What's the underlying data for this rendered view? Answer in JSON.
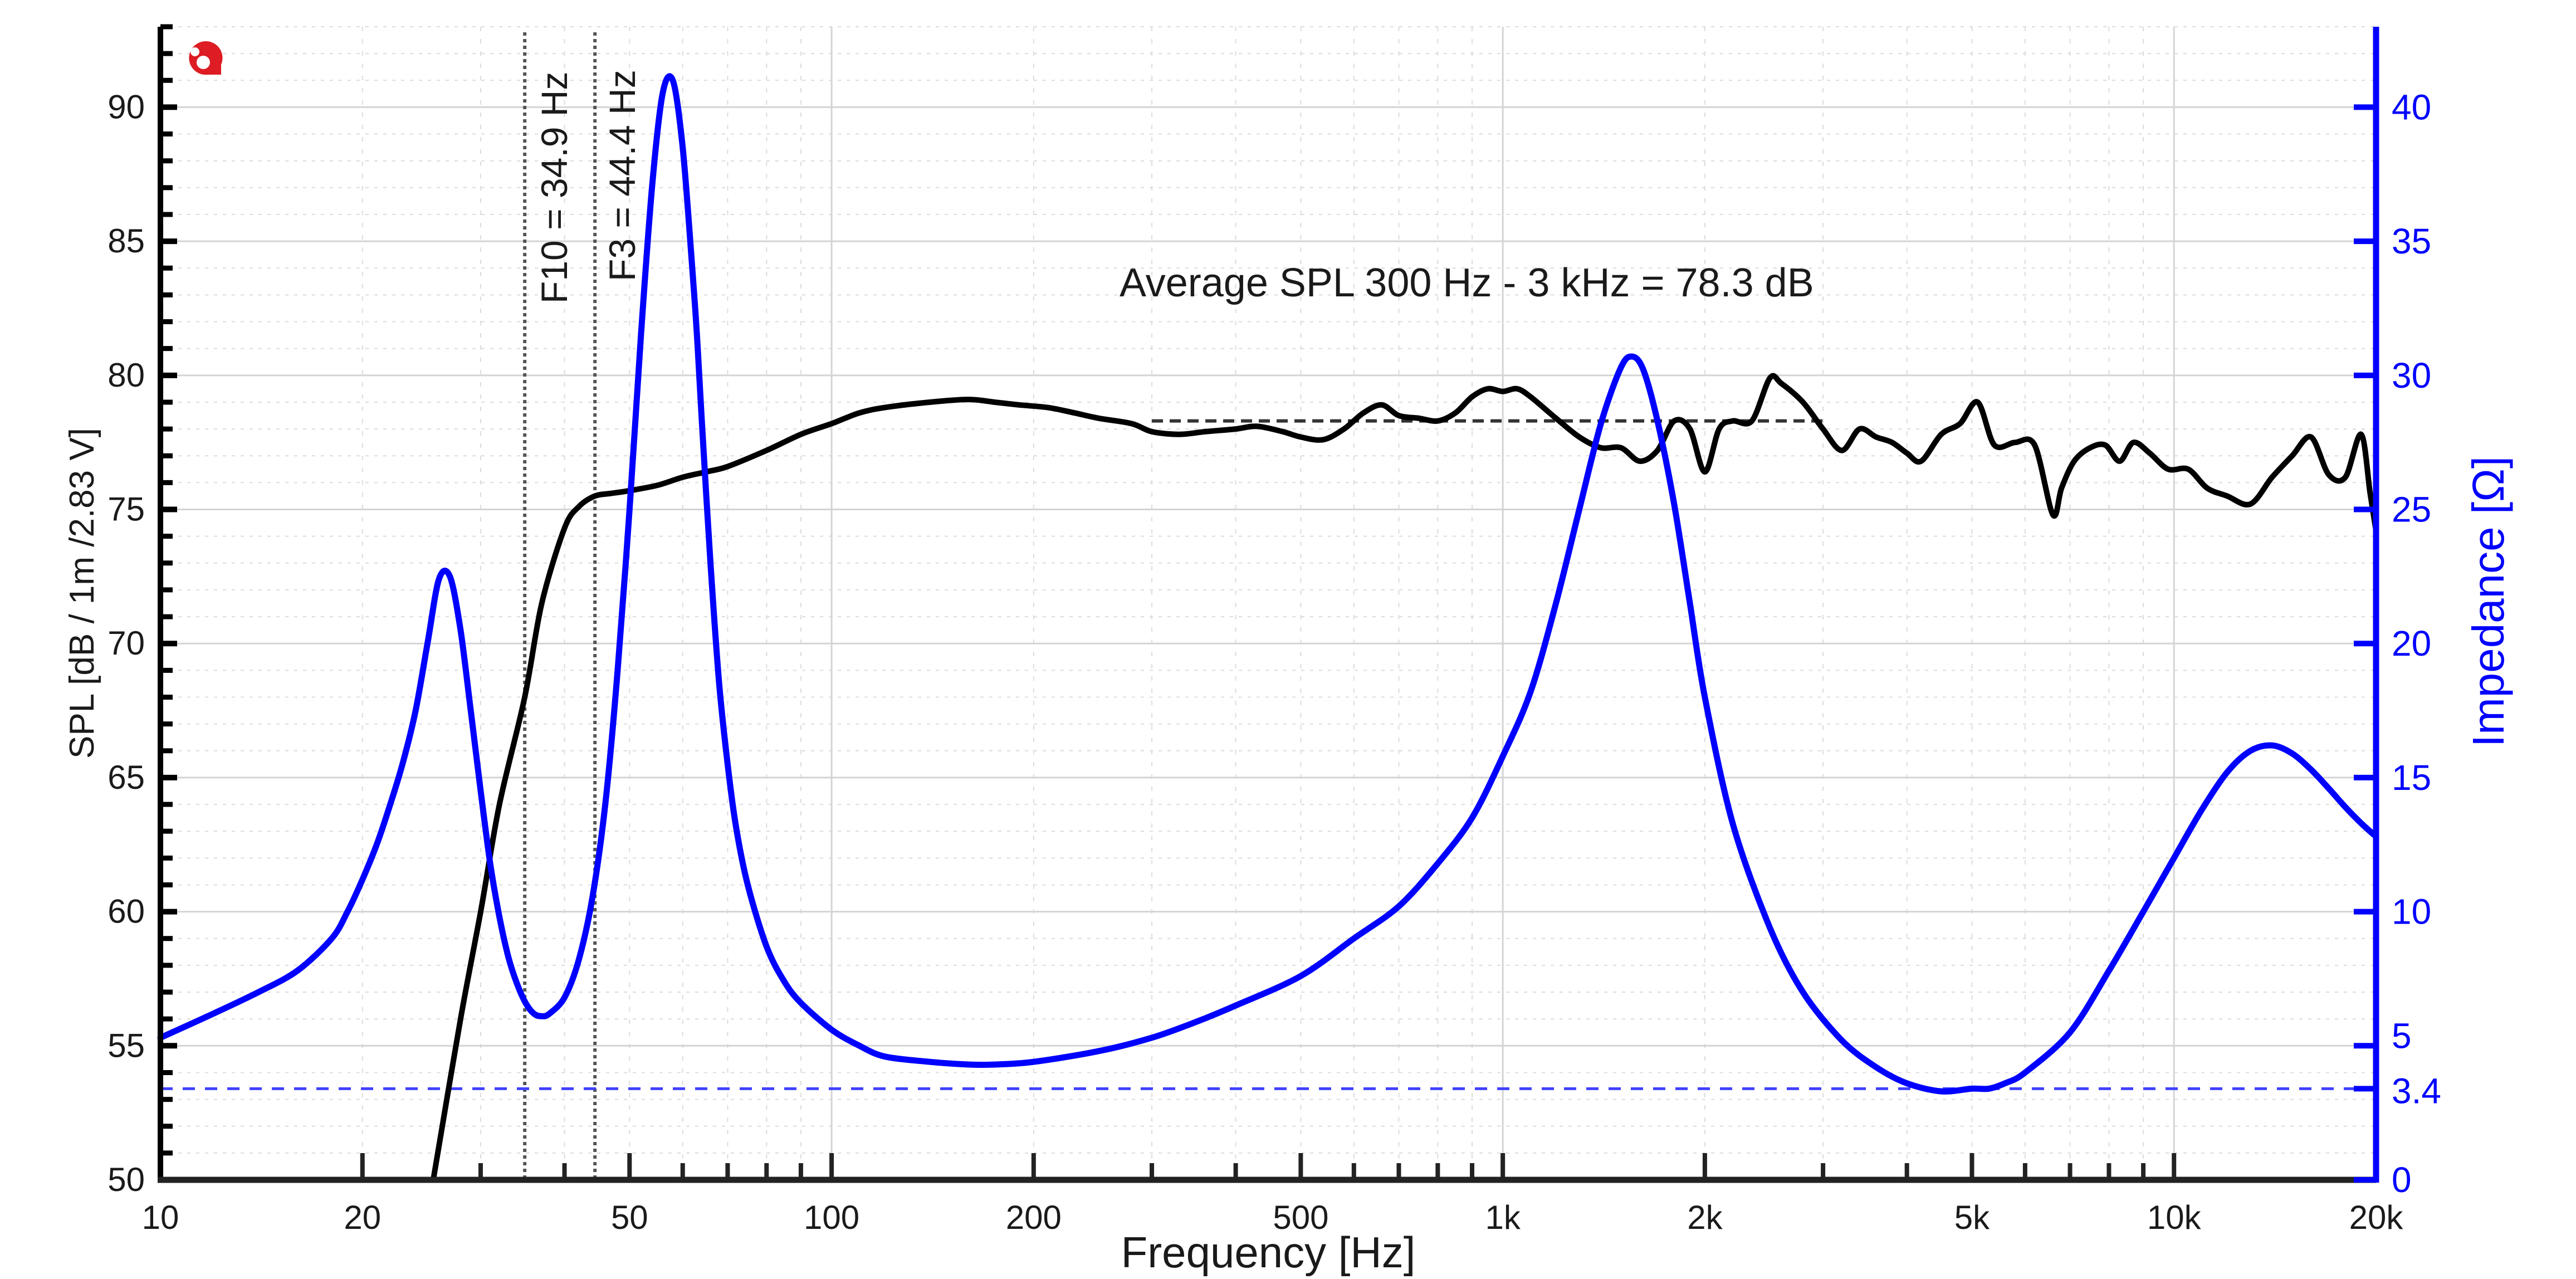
{
  "chart_data": {
    "type": "line",
    "title": "",
    "xlabel": "Frequency [Hz]",
    "ylabel": "SPL [dB / 1m /2.83 V]",
    "ylabel_right": "Impedance [Ω]",
    "xscale": "log",
    "xlim": [
      10,
      20000
    ],
    "ylim": [
      50,
      93
    ],
    "ylim_right": [
      0,
      43
    ],
    "grid": true,
    "x_ticks": [
      {
        "value": 10,
        "label": "10"
      },
      {
        "value": 20,
        "label": "20"
      },
      {
        "value": 50,
        "label": "50"
      },
      {
        "value": 100,
        "label": "100"
      },
      {
        "value": 200,
        "label": "200"
      },
      {
        "value": 500,
        "label": "500"
      },
      {
        "value": 1000,
        "label": "1k"
      },
      {
        "value": 2000,
        "label": "2k"
      },
      {
        "value": 5000,
        "label": "5k"
      },
      {
        "value": 10000,
        "label": "10k"
      },
      {
        "value": 20000,
        "label": "20k"
      }
    ],
    "y_ticks": [
      50,
      55,
      60,
      65,
      70,
      75,
      80,
      85,
      90
    ],
    "y_ticks_right": [
      {
        "value": 0,
        "label": "0"
      },
      {
        "value": 3.4,
        "label": "3.4"
      },
      {
        "value": 5,
        "label": "5"
      },
      {
        "value": 10,
        "label": "10"
      },
      {
        "value": 15,
        "label": "15"
      },
      {
        "value": 20,
        "label": "20"
      },
      {
        "value": 25,
        "label": "25"
      },
      {
        "value": 30,
        "label": "30"
      },
      {
        "value": 35,
        "label": "35"
      },
      {
        "value": 40,
        "label": "40"
      }
    ],
    "series": [
      {
        "name": "SPL",
        "axis": "left",
        "color": "#000000",
        "x": [
          25.5,
          28,
          30,
          32,
          34.9,
          37,
          40,
          42,
          44.4,
          47,
          50,
          55,
          60,
          65,
          70,
          80,
          90,
          100,
          110,
          120,
          140,
          160,
          175,
          190,
          210,
          230,
          250,
          280,
          300,
          330,
          360,
          400,
          430,
          470,
          500,
          540,
          580,
          620,
          660,
          700,
          750,
          800,
          850,
          900,
          950,
          1000,
          1050,
          1100,
          1200,
          1300,
          1400,
          1500,
          1600,
          1700,
          1800,
          1900,
          2000,
          2100,
          2200,
          2350,
          2500,
          2600,
          2800,
          3000,
          3200,
          3400,
          3600,
          3800,
          4000,
          4200,
          4500,
          4800,
          5100,
          5400,
          5800,
          6200,
          6600,
          6800,
          7100,
          7500,
          7900,
          8300,
          8700,
          9200,
          9800,
          10500,
          11200,
          12000,
          13000,
          14000,
          15000,
          16000,
          17000,
          18000,
          19000,
          19600,
          20000
        ],
        "values": [
          50,
          56,
          60,
          64,
          68,
          71.5,
          74.3,
          75.1,
          75.5,
          75.6,
          75.7,
          75.9,
          76.2,
          76.4,
          76.6,
          77.2,
          77.8,
          78.2,
          78.6,
          78.8,
          79.0,
          79.1,
          79.0,
          78.9,
          78.8,
          78.6,
          78.4,
          78.2,
          77.9,
          77.8,
          77.9,
          78.0,
          78.1,
          77.9,
          77.7,
          77.6,
          78.0,
          78.6,
          78.9,
          78.5,
          78.4,
          78.3,
          78.6,
          79.2,
          79.5,
          79.4,
          79.5,
          79.2,
          78.4,
          77.7,
          77.3,
          77.3,
          76.8,
          77.2,
          78.3,
          78.0,
          76.4,
          78.0,
          78.3,
          78.3,
          79.9,
          79.7,
          79.0,
          78.0,
          77.2,
          78.0,
          77.7,
          77.5,
          77.1,
          76.8,
          77.8,
          78.2,
          79.0,
          77.4,
          77.5,
          77.4,
          74.8,
          75.8,
          76.8,
          77.3,
          77.4,
          76.8,
          77.5,
          77.1,
          76.5,
          76.5,
          75.8,
          75.5,
          75.2,
          76.2,
          77.0,
          77.7,
          76.3,
          76.2,
          77.8,
          75.6,
          74.2
        ]
      },
      {
        "name": "Impedance",
        "axis": "right",
        "color": "#0000ff",
        "x": [
          10,
          12,
          14,
          16,
          18,
          19,
          20,
          21,
          22,
          23,
          24,
          25,
          26,
          27,
          28,
          29,
          30,
          31,
          32,
          33,
          34,
          35,
          36,
          37,
          38,
          40,
          42,
          44,
          46,
          48,
          50,
          52,
          54,
          56,
          58,
          60,
          62,
          63,
          64,
          66,
          68,
          70,
          72,
          75,
          80,
          85,
          90,
          100,
          110,
          120,
          140,
          160,
          175,
          200,
          250,
          300,
          350,
          400,
          500,
          600,
          700,
          800,
          900,
          1000,
          1100,
          1200,
          1300,
          1400,
          1500,
          1560,
          1620,
          1700,
          1800,
          1900,
          2000,
          2200,
          2500,
          2800,
          3200,
          3600,
          4000,
          4500,
          5000,
          5300,
          5600,
          6000,
          7000,
          8000,
          9000,
          10000,
          11000,
          12000,
          13000,
          14000,
          15000,
          16000,
          17000,
          18000,
          19000,
          20000
        ],
        "values": [
          5.3,
          6.2,
          7.0,
          7.8,
          9.0,
          10.0,
          11.2,
          12.5,
          14.0,
          15.6,
          17.5,
          20.0,
          22.4,
          22.5,
          20.5,
          17.5,
          14.5,
          11.8,
          9.8,
          8.3,
          7.3,
          6.6,
          6.2,
          6.1,
          6.2,
          6.8,
          8.2,
          10.5,
          14.0,
          19.0,
          25.0,
          31.5,
          37.0,
          40.5,
          41.0,
          38.5,
          34.0,
          31.5,
          28.5,
          23.0,
          18.5,
          15.5,
          13.2,
          11.0,
          8.7,
          7.4,
          6.6,
          5.6,
          5.0,
          4.6,
          4.4,
          4.3,
          4.3,
          4.4,
          4.8,
          5.3,
          5.9,
          6.5,
          7.6,
          9.0,
          10.2,
          11.8,
          13.5,
          15.8,
          18.2,
          21.5,
          25.0,
          28.2,
          30.3,
          30.7,
          30.2,
          28.3,
          25.2,
          21.5,
          18.0,
          13.3,
          9.4,
          7.0,
          5.2,
          4.2,
          3.6,
          3.3,
          3.4,
          3.4,
          3.6,
          4.0,
          5.5,
          7.8,
          10.0,
          12.0,
          13.8,
          15.2,
          16.0,
          16.2,
          15.9,
          15.3,
          14.6,
          13.9,
          13.3,
          12.8
        ]
      }
    ],
    "reference_lines": [
      {
        "name": "F10",
        "type": "vertical",
        "x": 34.9,
        "label": "F10 = 34.9 Hz",
        "style": "dotted",
        "color": "#555555"
      },
      {
        "name": "F3",
        "type": "vertical",
        "x": 44.4,
        "label": "F3 = 44.4 Hz",
        "style": "dotted",
        "color": "#555555"
      },
      {
        "name": "average-spl",
        "type": "horizontal-segment",
        "x_range": [
          300,
          3000
        ],
        "y": 78.3,
        "axis": "left",
        "style": "dashed",
        "color": "#333333"
      },
      {
        "name": "min-impedance",
        "type": "horizontal",
        "y": 3.4,
        "axis": "right",
        "style": "dashed",
        "color": "#4040ff"
      }
    ],
    "annotations": [
      {
        "text": "Average SPL 300 Hz - 3 kHz = 78.3 dB"
      }
    ]
  },
  "logo": {
    "icon": "brand-logo-icon",
    "color": "#dd1c24"
  }
}
